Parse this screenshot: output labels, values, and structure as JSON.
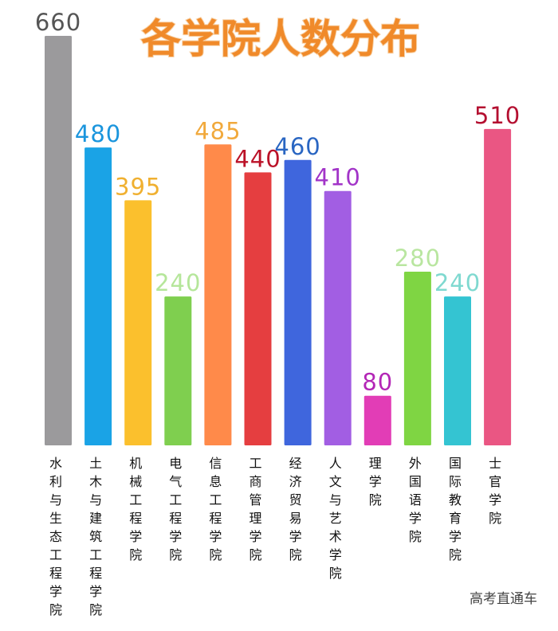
{
  "chart_data": {
    "type": "bar",
    "title": "各学院人数分布",
    "categories": [
      "水利与生态工程学院",
      "土木与建筑工程学院",
      "机械工程学院",
      "电气工程学院",
      "信息工程学院",
      "工商管理学院",
      "经济贸易学院",
      "人文与艺术学院",
      "理学院",
      "外国语学院",
      "国际教育学院",
      "士官学院"
    ],
    "values": [
      660,
      480,
      395,
      240,
      485,
      440,
      460,
      410,
      80,
      280,
      240,
      510
    ],
    "bar_colors": [
      "#9b9a9c",
      "#1aa3e6",
      "#fbc02d",
      "#7fcf4f",
      "#ff8a4a",
      "#e53e40",
      "#3f66dd",
      "#a25ee3",
      "#e23db6",
      "#7fd543",
      "#34c4d2",
      "#ea5683"
    ],
    "label_colors": [
      "#555555",
      "#1a95dd",
      "#f0b030",
      "#b5e69a",
      "#f1a93c",
      "#bb1228",
      "#2a66c2",
      "#a234c8",
      "#b326b6",
      "#b9e6a0",
      "#7fd9d0",
      "#b40f30"
    ],
    "ylim": [
      0,
      660
    ],
    "grid": false,
    "legend": "none"
  },
  "watermark": "高考直通车"
}
